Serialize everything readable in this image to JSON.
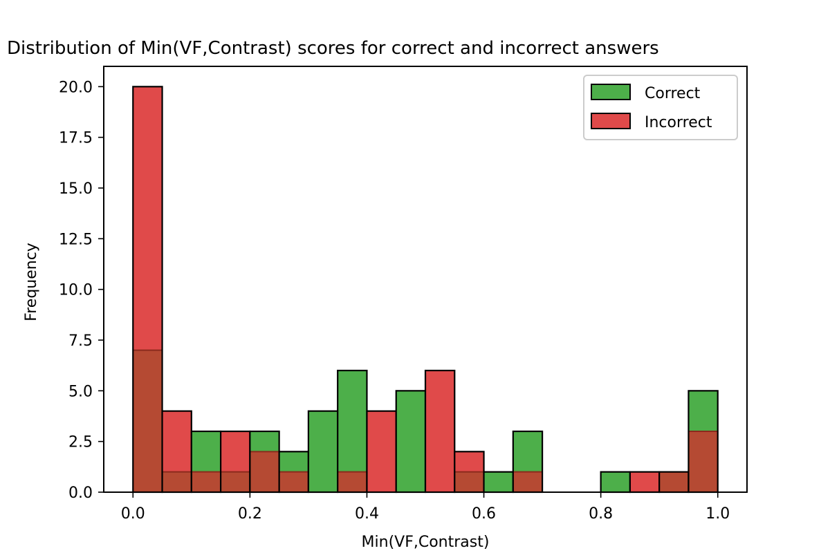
{
  "chart_data": {
    "type": "histogram",
    "title": "Distribution of Min(VF,Contrast) scores for correct and incorrect answers",
    "xlabel": "Min(VF,Contrast)",
    "ylabel": "Frequency",
    "xlim": [
      -0.05,
      1.05
    ],
    "ylim": [
      0,
      21
    ],
    "xticks": [
      "0.0",
      "0.2",
      "0.4",
      "0.6",
      "0.8",
      "1.0"
    ],
    "yticks": [
      "0.0",
      "2.5",
      "5.0",
      "7.5",
      "10.0",
      "12.5",
      "15.0",
      "17.5",
      "20.0"
    ],
    "bin_edges": [
      0.0,
      0.05,
      0.1,
      0.15,
      0.2,
      0.25,
      0.3,
      0.35,
      0.4,
      0.45,
      0.5,
      0.55,
      0.6,
      0.65,
      0.7,
      0.75,
      0.8,
      0.85,
      0.9,
      0.95,
      1.0
    ],
    "series": [
      {
        "name": "Correct",
        "color": "#4daf4a",
        "values": [
          7,
          1,
          3,
          1,
          3,
          2,
          4,
          6,
          0,
          5,
          0,
          1,
          1,
          3,
          0,
          0,
          1,
          0,
          1,
          5
        ]
      },
      {
        "name": "Incorrect",
        "color": "#e04a4a",
        "values": [
          20,
          4,
          1,
          3,
          2,
          1,
          0,
          1,
          4,
          0,
          6,
          2,
          0,
          1,
          0,
          0,
          0,
          1,
          1,
          3
        ]
      }
    ],
    "overlap_color": "#b54a33",
    "legend_position": "top-right",
    "grid": false
  }
}
